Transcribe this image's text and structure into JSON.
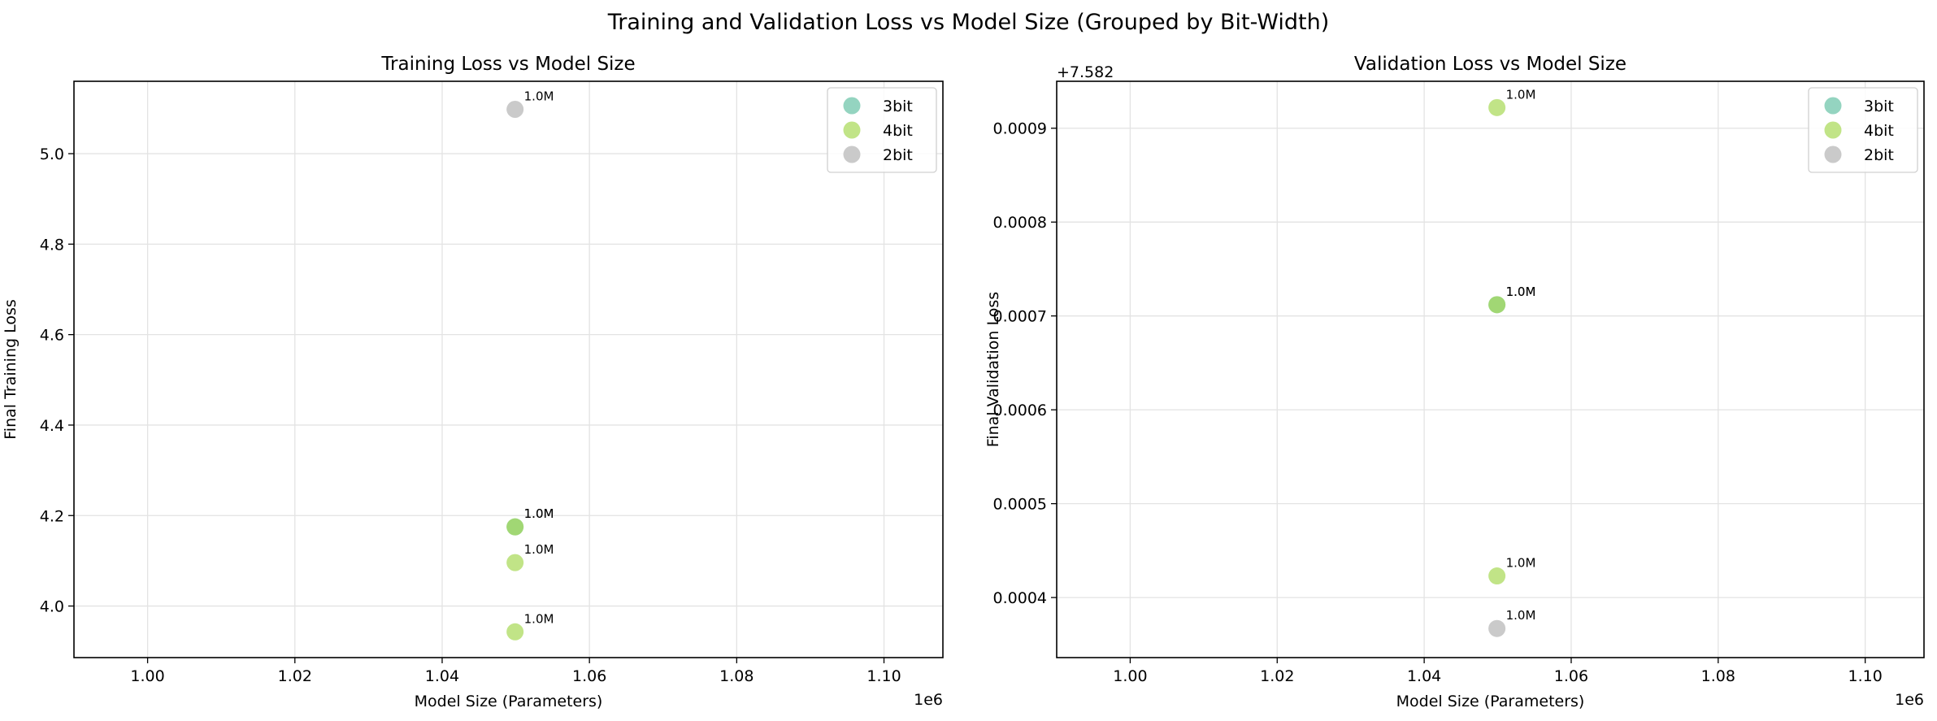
{
  "figure": {
    "title": "Training and Validation Loss vs Model Size (Grouped by Bit-Width)"
  },
  "colors": {
    "3bit": "#66c2a5",
    "4bit": "#a6d854",
    "2bit": "#b3b3b3"
  },
  "chart_data": [
    {
      "type": "scatter",
      "title": "Training Loss vs Model Size",
      "xlabel": "Model Size (Parameters)",
      "ylabel": "Final Training Loss",
      "x_offset_label": "1e6",
      "y_offset_label": "",
      "xlim": [
        0.99,
        1.108
      ],
      "ylim": [
        3.886,
        5.16
      ],
      "xticks": [
        1.0,
        1.02,
        1.04,
        1.06,
        1.08,
        1.1
      ],
      "xtick_labels": [
        "1.00",
        "1.02",
        "1.04",
        "1.06",
        "1.08",
        "1.10"
      ],
      "yticks": [
        4.0,
        4.2,
        4.4,
        4.6,
        4.8,
        5.0
      ],
      "ytick_labels": [
        "4.0",
        "4.2",
        "4.4",
        "4.6",
        "4.8",
        "5.0"
      ],
      "grid": true,
      "legend_position": "top-right",
      "series": [
        {
          "name": "3bit",
          "color_key": "3bit",
          "points": [
            {
              "x": 1.0499,
              "y": 4.175,
              "label": "1.0M"
            }
          ]
        },
        {
          "name": "4bit",
          "color_key": "4bit",
          "points": [
            {
              "x": 1.0499,
              "y": 4.175,
              "label": "1.0M"
            },
            {
              "x": 1.0499,
              "y": 4.096,
              "label": "1.0M"
            },
            {
              "x": 1.0499,
              "y": 3.943,
              "label": "1.0M"
            }
          ]
        },
        {
          "name": "2bit",
          "color_key": "2bit",
          "points": [
            {
              "x": 1.0499,
              "y": 5.098,
              "label": "1.0M"
            }
          ]
        }
      ]
    },
    {
      "type": "scatter",
      "title": "Validation Loss vs Model Size",
      "xlabel": "Model Size (Parameters)",
      "ylabel": "Final Validation Loss",
      "x_offset_label": "1e6",
      "y_offset_label": "+7.582",
      "xlim": [
        0.99,
        1.108
      ],
      "ylim": [
        0.000336,
        0.00095
      ],
      "xticks": [
        1.0,
        1.02,
        1.04,
        1.06,
        1.08,
        1.1
      ],
      "xtick_labels": [
        "1.00",
        "1.02",
        "1.04",
        "1.06",
        "1.08",
        "1.10"
      ],
      "yticks": [
        0.0004,
        0.0005,
        0.0006,
        0.0007,
        0.0008,
        0.0009
      ],
      "ytick_labels": [
        "0.0004",
        "0.0005",
        "0.0006",
        "0.0007",
        "0.0008",
        "0.0009"
      ],
      "grid": true,
      "legend_position": "top-right",
      "series": [
        {
          "name": "3bit",
          "color_key": "3bit",
          "points": [
            {
              "x": 1.0499,
              "y": 0.000712,
              "label": "1.0M"
            }
          ]
        },
        {
          "name": "4bit",
          "color_key": "4bit",
          "points": [
            {
              "x": 1.0499,
              "y": 0.000922,
              "label": "1.0M"
            },
            {
              "x": 1.0499,
              "y": 0.000712,
              "label": "1.0M"
            },
            {
              "x": 1.0499,
              "y": 0.000423,
              "label": "1.0M"
            }
          ]
        },
        {
          "name": "2bit",
          "color_key": "2bit",
          "points": [
            {
              "x": 1.0499,
              "y": 0.000367,
              "label": "1.0M"
            }
          ]
        }
      ]
    }
  ]
}
